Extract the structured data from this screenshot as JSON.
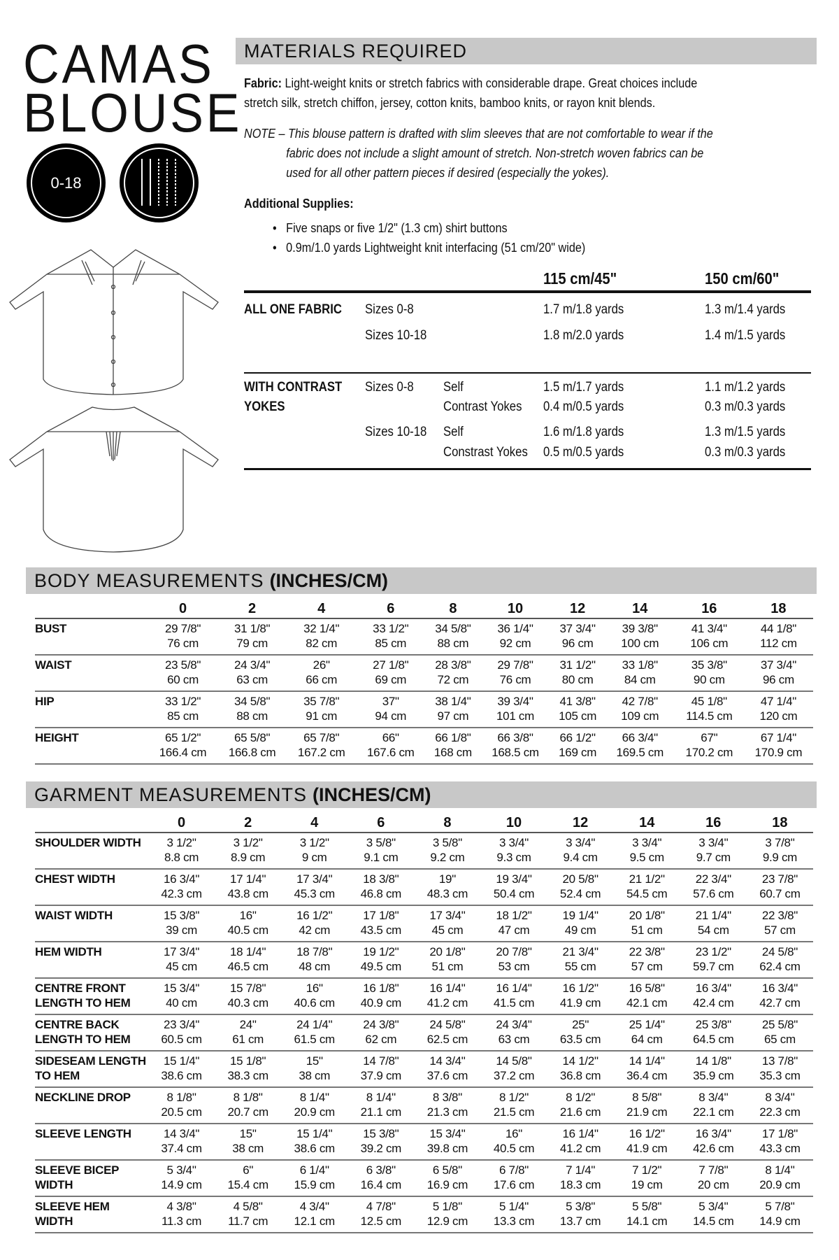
{
  "title": {
    "line1": "CAMAS",
    "line2": "BLOUSE"
  },
  "badges": {
    "size_range": "0-18",
    "needle_icon": "twin-needles-icon"
  },
  "materials": {
    "heading": "MATERIALS REQUIRED",
    "fabric_label": "Fabric:",
    "fabric_text_1": " Light-weight knits or stretch fabrics with considerable drape. Great choices include",
    "fabric_text_2": "stretch silk, stretch chiffon, jersey, cotton knits, bamboo knits, or rayon knit blends.",
    "note_1": "NOTE – This blouse pattern is drafted with slim sleeves that are not comfortable to wear if the",
    "note_2": "fabric does not include a slight amount of stretch. Non-stretch woven fabrics can be",
    "note_3": "used for all other pattern pieces if desired (especially the yokes).",
    "supplies_label": "Additional Supplies:",
    "supplies": [
      "Five snaps or five 1/2\" (1.3 cm) shirt buttons",
      "0.9m/1.0 yards Lightweight knit interfacing (51 cm/20\" wide)"
    ],
    "col_115": "115 cm/45\"",
    "col_150": "150 cm/60\"",
    "all_one": {
      "label": "ALL ONE FABRIC",
      "rows": [
        {
          "size": "Sizes 0-8",
          "w115": "1.7 m/1.8 yards",
          "w150": "1.3 m/1.4 yards"
        },
        {
          "size": "Sizes 10-18",
          "w115": "1.8 m/2.0 yards",
          "w150": "1.4 m/1.5 yards"
        }
      ]
    },
    "contrast": {
      "label_1": "WITH CONTRAST",
      "label_2": "YOKES",
      "rows": [
        {
          "size": "Sizes 0-8",
          "piece": "Self",
          "w115": "1.5 m/1.7 yards",
          "w150": "1.1 m/1.2 yards"
        },
        {
          "size": "",
          "piece": "Contrast Yokes",
          "w115": "0.4 m/0.5 yards",
          "w150": "0.3 m/0.3 yards"
        },
        {
          "size": "Sizes 10-18",
          "piece": "Self",
          "w115": "1.6 m/1.8 yards",
          "w150": "1.3 m/1.5 yards"
        },
        {
          "size": "",
          "piece": "Constrast Yokes",
          "w115": "0.5 m/0.5 yards",
          "w150": "0.3 m/0.3 yards"
        }
      ]
    }
  },
  "sizes": [
    "0",
    "2",
    "4",
    "6",
    "8",
    "10",
    "12",
    "14",
    "16",
    "18"
  ],
  "body": {
    "heading": "BODY MEASUREMENTS",
    "unit": "(INCHES/CM)",
    "rows": [
      {
        "label": "BUST",
        "in": [
          "29 7/8\"",
          "31 1/8\"",
          "32 1/4\"",
          "33 1/2\"",
          "34 5/8\"",
          "36 1/4\"",
          "37 3/4\"",
          "39 3/8\"",
          "41 3/4\"",
          "44 1/8\""
        ],
        "cm": [
          "76 cm",
          "79 cm",
          "82 cm",
          "85 cm",
          "88 cm",
          "92 cm",
          "96 cm",
          "100 cm",
          "106 cm",
          "112 cm"
        ]
      },
      {
        "label": "WAIST",
        "in": [
          "23 5/8\"",
          "24 3/4\"",
          "26\"",
          "27 1/8\"",
          "28 3/8\"",
          "29 7/8\"",
          "31 1/2\"",
          "33 1/8\"",
          "35 3/8\"",
          "37 3/4\""
        ],
        "cm": [
          "60 cm",
          "63 cm",
          "66 cm",
          "69 cm",
          "72 cm",
          "76 cm",
          "80 cm",
          "84 cm",
          "90 cm",
          "96 cm"
        ]
      },
      {
        "label": "HIP",
        "in": [
          "33 1/2\"",
          "34 5/8\"",
          "35 7/8\"",
          "37\"",
          "38 1/4\"",
          "39 3/4\"",
          "41 3/8\"",
          "42 7/8\"",
          "45 1/8\"",
          "47 1/4\""
        ],
        "cm": [
          "85 cm",
          "88 cm",
          "91 cm",
          "94 cm",
          "97 cm",
          "101 cm",
          "105 cm",
          "109 cm",
          "114.5 cm",
          "120 cm"
        ]
      },
      {
        "label": "HEIGHT",
        "in": [
          "65 1/2\"",
          "65 5/8\"",
          "65 7/8\"",
          "66\"",
          "66 1/8\"",
          "66 3/8\"",
          "66 1/2\"",
          "66 3/4\"",
          "67\"",
          "67 1/4\""
        ],
        "cm": [
          "166.4 cm",
          "166.8 cm",
          "167.2 cm",
          "167.6 cm",
          "168 cm",
          "168.5 cm",
          "169 cm",
          "169.5 cm",
          "170.2 cm",
          "170.9 cm"
        ]
      }
    ]
  },
  "garment": {
    "heading": "GARMENT MEASUREMENTS",
    "unit": "(INCHES/CM)",
    "rows": [
      {
        "label": "SHOULDER WIDTH",
        "in": [
          "3 1/2\"",
          "3 1/2\"",
          "3 1/2\"",
          "3 5/8\"",
          "3 5/8\"",
          "3 3/4\"",
          "3 3/4\"",
          "3 3/4\"",
          "3 3/4\"",
          "3 7/8\""
        ],
        "cm": [
          "8.8 cm",
          "8.9 cm",
          "9 cm",
          "9.1 cm",
          "9.2 cm",
          "9.3 cm",
          "9.4 cm",
          "9.5 cm",
          "9.7 cm",
          "9.9 cm"
        ]
      },
      {
        "label": "CHEST WIDTH",
        "in": [
          "16 3/4\"",
          "17 1/4\"",
          "17 3/4\"",
          "18 3/8\"",
          "19\"",
          "19 3/4\"",
          "20 5/8\"",
          "21 1/2\"",
          "22 3/4\"",
          "23 7/8\""
        ],
        "cm": [
          "42.3 cm",
          "43.8 cm",
          "45.3 cm",
          "46.8 cm",
          "48.3 cm",
          "50.4 cm",
          "52.4 cm",
          "54.5 cm",
          "57.6 cm",
          "60.7 cm"
        ]
      },
      {
        "label": "WAIST WIDTH",
        "in": [
          "15 3/8\"",
          "16\"",
          "16 1/2\"",
          "17 1/8\"",
          "17 3/4\"",
          "18 1/2\"",
          "19 1/4\"",
          "20 1/8\"",
          "21 1/4\"",
          "22 3/8\""
        ],
        "cm": [
          "39 cm",
          "40.5 cm",
          "42 cm",
          "43.5 cm",
          "45 cm",
          "47 cm",
          "49 cm",
          "51 cm",
          "54 cm",
          "57 cm"
        ]
      },
      {
        "label": "HEM WIDTH",
        "in": [
          "17 3/4\"",
          "18 1/4\"",
          "18 7/8\"",
          "19 1/2\"",
          "20 1/8\"",
          "20 7/8\"",
          "21 3/4\"",
          "22 3/8\"",
          "23 1/2\"",
          "24 5/8\""
        ],
        "cm": [
          "45 cm",
          "46.5 cm",
          "48 cm",
          "49.5 cm",
          "51 cm",
          "53 cm",
          "55 cm",
          "57 cm",
          "59.7 cm",
          "62.4 cm"
        ]
      },
      {
        "label": "CENTRE FRONT LENGTH TO HEM",
        "in": [
          "15 3/4\"",
          "15 7/8\"",
          "16\"",
          "16 1/8\"",
          "16 1/4\"",
          "16 1/4\"",
          "16 1/2\"",
          "16 5/8\"",
          "16 3/4\"",
          "16 3/4\""
        ],
        "cm": [
          "40 cm",
          "40.3 cm",
          "40.6 cm",
          "40.9 cm",
          "41.2 cm",
          "41.5 cm",
          "41.9 cm",
          "42.1 cm",
          "42.4 cm",
          "42.7 cm"
        ]
      },
      {
        "label": "CENTRE BACK LENGTH TO HEM",
        "in": [
          "23 3/4\"",
          "24\"",
          "24 1/4\"",
          "24 3/8\"",
          "24 5/8\"",
          "24 3/4\"",
          "25\"",
          "25 1/4\"",
          "25 3/8\"",
          "25 5/8\""
        ],
        "cm": [
          "60.5 cm",
          "61 cm",
          "61.5 cm",
          "62 cm",
          "62.5 cm",
          "63 cm",
          "63.5 cm",
          "64 cm",
          "64.5 cm",
          "65 cm"
        ]
      },
      {
        "label": "SIDESEAM LENGTH TO HEM",
        "in": [
          "15 1/4\"",
          "15 1/8\"",
          "15\"",
          "14 7/8\"",
          "14 3/4\"",
          "14 5/8\"",
          "14 1/2\"",
          "14 1/4\"",
          "14 1/8\"",
          "13 7/8\""
        ],
        "cm": [
          "38.6 cm",
          "38.3 cm",
          "38 cm",
          "37.9 cm",
          "37.6 cm",
          "37.2 cm",
          "36.8 cm",
          "36.4 cm",
          "35.9 cm",
          "35.3 cm"
        ]
      },
      {
        "label": "NECKLINE DROP",
        "in": [
          "8 1/8\"",
          "8 1/8\"",
          "8 1/4\"",
          "8 1/4\"",
          "8 3/8\"",
          "8 1/2\"",
          "8 1/2\"",
          "8 5/8\"",
          "8 3/4\"",
          "8 3/4\""
        ],
        "cm": [
          "20.5 cm",
          "20.7 cm",
          "20.9 cm",
          "21.1 cm",
          "21.3 cm",
          "21.5 cm",
          "21.6 cm",
          "21.9 cm",
          "22.1 cm",
          "22.3 cm"
        ]
      },
      {
        "label": "SLEEVE LENGTH",
        "in": [
          "14 3/4\"",
          "15\"",
          "15 1/4\"",
          "15 3/8\"",
          "15 3/4\"",
          "16\"",
          "16 1/4\"",
          "16 1/2\"",
          "16 3/4\"",
          "17 1/8\""
        ],
        "cm": [
          "37.4 cm",
          "38 cm",
          "38.6 cm",
          "39.2 cm",
          "39.8 cm",
          "40.5 cm",
          "41.2 cm",
          "41.9 cm",
          "42.6 cm",
          "43.3 cm"
        ]
      },
      {
        "label": "SLEEVE BICEP WIDTH",
        "in": [
          "5 3/4\"",
          "6\"",
          "6 1/4\"",
          "6 3/8\"",
          "6 5/8\"",
          "6 7/8\"",
          "7 1/4\"",
          "7 1/2\"",
          "7 7/8\"",
          "8 1/4\""
        ],
        "cm": [
          "14.9 cm",
          "15.4 cm",
          "15.9 cm",
          "16.4 cm",
          "16.9 cm",
          "17.6 cm",
          "18.3 cm",
          "19 cm",
          "20 cm",
          "20.9 cm"
        ]
      },
      {
        "label": "SLEEVE HEM WIDTH",
        "in": [
          "4 3/8\"",
          "4 5/8\"",
          "4 3/4\"",
          "4 7/8\"",
          "5 1/8\"",
          "5 1/4\"",
          "5 3/8\"",
          "5 5/8\"",
          "5 3/4\"",
          "5 7/8\""
        ],
        "cm": [
          "11.3 cm",
          "11.7 cm",
          "12.1 cm",
          "12.5 cm",
          "12.9 cm",
          "13.3 cm",
          "13.7 cm",
          "14.1 cm",
          "14.5 cm",
          "14.9 cm"
        ]
      }
    ]
  }
}
